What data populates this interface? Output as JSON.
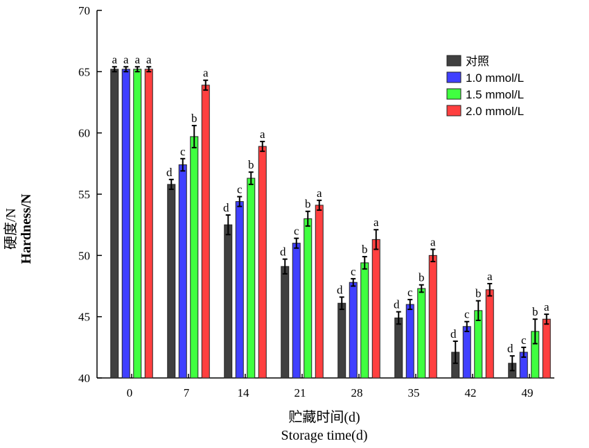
{
  "chart_data": {
    "type": "bar",
    "title": "",
    "xlabel_cn": "贮藏时间(d)",
    "xlabel": "Storage time(d)",
    "ylabel_cn": "硬度/N",
    "ylabel": "Hardness/N",
    "ylim": [
      40,
      70
    ],
    "yticks": [
      40,
      45,
      50,
      55,
      60,
      65,
      70
    ],
    "categories": [
      "0",
      "7",
      "14",
      "21",
      "28",
      "35",
      "42",
      "49"
    ],
    "legend_position": "top-right",
    "series": [
      {
        "name": "对照",
        "color": "#404040",
        "values": [
          65.2,
          55.8,
          52.5,
          49.1,
          46.1,
          44.9,
          42.1,
          41.2
        ],
        "errors": [
          0.2,
          0.4,
          0.8,
          0.6,
          0.5,
          0.5,
          0.9,
          0.6
        ],
        "letters": [
          "a",
          "d",
          "d",
          "d",
          "d",
          "d",
          "d",
          "d"
        ]
      },
      {
        "name": "1.0 mmol/L",
        "color": "#4040ff",
        "values": [
          65.2,
          57.4,
          54.4,
          51.0,
          47.8,
          46.0,
          44.2,
          42.1
        ],
        "errors": [
          0.2,
          0.5,
          0.4,
          0.4,
          0.3,
          0.4,
          0.4,
          0.4
        ],
        "letters": [
          "a",
          "c",
          "c",
          "c",
          "c",
          "c",
          "c",
          "c"
        ]
      },
      {
        "name": "1.5 mmol/L",
        "color": "#40ff40",
        "values": [
          65.2,
          59.7,
          56.3,
          53.0,
          49.4,
          47.3,
          45.5,
          43.8
        ],
        "errors": [
          0.2,
          0.9,
          0.5,
          0.6,
          0.5,
          0.3,
          0.8,
          1.0
        ],
        "letters": [
          "a",
          "b",
          "b",
          "b",
          "b",
          "b",
          "b",
          "b"
        ]
      },
      {
        "name": "2.0 mmol/L",
        "color": "#ff4040",
        "values": [
          65.2,
          63.9,
          58.9,
          54.1,
          51.3,
          50.0,
          47.2,
          44.8
        ],
        "errors": [
          0.2,
          0.4,
          0.4,
          0.4,
          0.8,
          0.5,
          0.5,
          0.4
        ],
        "letters": [
          "a",
          "a",
          "a",
          "a",
          "a",
          "a",
          "a",
          "a"
        ]
      }
    ]
  }
}
